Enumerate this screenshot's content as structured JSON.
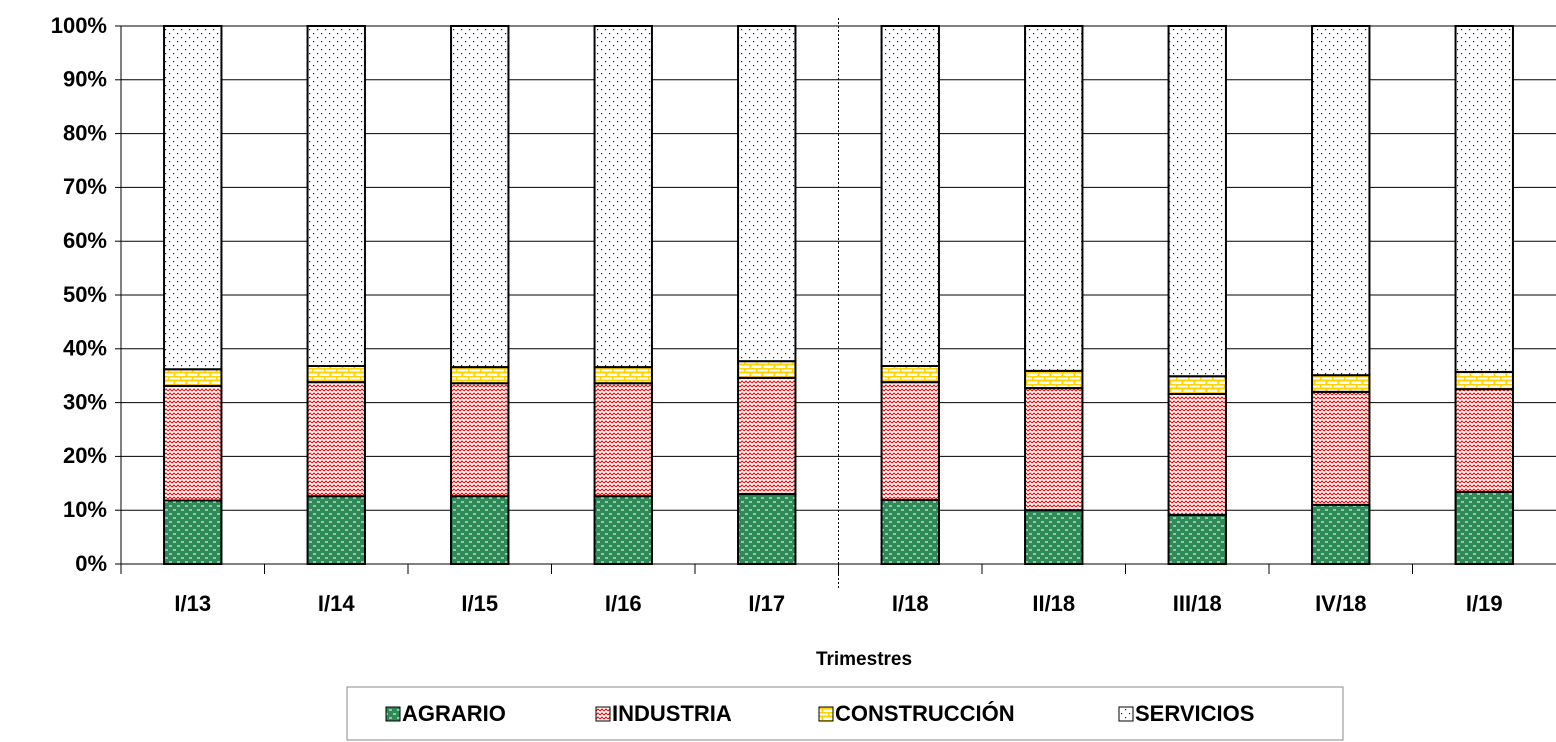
{
  "chart_data": {
    "type": "stacked-bar",
    "x_label": "Trimestres",
    "categories": [
      "I/13",
      "I/14",
      "I/15",
      "I/16",
      "I/17",
      "I/18",
      "II/18",
      "III/18",
      "IV/18",
      "I/19"
    ],
    "series": [
      {
        "name": "AGRARIO",
        "color": "#2e8b57",
        "values": [
          11.8,
          12.6,
          12.6,
          12.6,
          13.0,
          11.9,
          10.0,
          9.1,
          11.0,
          13.4
        ]
      },
      {
        "name": "INDUSTRIA",
        "color": "#ff0000",
        "values": [
          21.3,
          21.2,
          21.0,
          21.0,
          21.6,
          21.9,
          22.7,
          22.5,
          21.0,
          19.1
        ]
      },
      {
        "name": "CONSTRUCCIÓN",
        "color": "#ffd200",
        "values": [
          3.1,
          3.0,
          3.0,
          3.0,
          3.1,
          3.0,
          3.2,
          3.3,
          3.1,
          3.2
        ]
      },
      {
        "name": "SERVICIOS",
        "color": "#0000ff",
        "values": [
          63.8,
          63.2,
          63.4,
          63.4,
          62.3,
          63.2,
          64.1,
          65.1,
          64.9,
          64.3
        ]
      }
    ],
    "ylim": [
      0,
      100
    ],
    "yticks": [
      {
        "value": 0,
        "label": "0%"
      },
      {
        "value": 10,
        "label": "10%"
      },
      {
        "value": 20,
        "label": "20%"
      },
      {
        "value": 30,
        "label": "30%"
      },
      {
        "value": 40,
        "label": "40%"
      },
      {
        "value": 50,
        "label": "50%"
      },
      {
        "value": 60,
        "label": "60%"
      },
      {
        "value": 70,
        "label": "70%"
      },
      {
        "value": 80,
        "label": "80%"
      },
      {
        "value": 90,
        "label": "90%"
      },
      {
        "value": 100,
        "label": "100%"
      }
    ],
    "grid": true
  }
}
